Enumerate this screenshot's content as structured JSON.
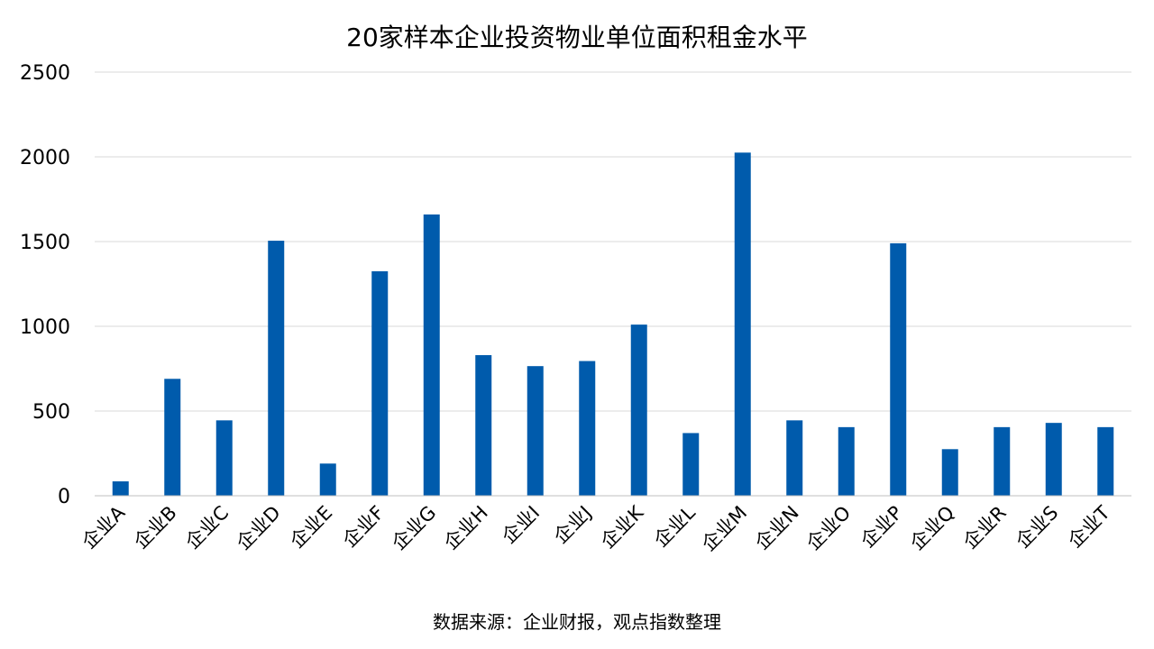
{
  "chart_data": {
    "type": "bar",
    "title": "20家样本企业投资物业单位面积租金水平",
    "xlabel": "",
    "ylabel": "",
    "ylim": [
      0,
      2500
    ],
    "yticks": [
      0,
      500,
      1000,
      1500,
      2000,
      2500
    ],
    "grid": true,
    "legend": "none",
    "color": "#005BAC",
    "categories": [
      "企业A",
      "企业B",
      "企业C",
      "企业D",
      "企业E",
      "企业F",
      "企业G",
      "企业H",
      "企业I",
      "企业J",
      "企业K",
      "企业L",
      "企业M",
      "企业N",
      "企业O",
      "企业P",
      "企业Q",
      "企业R",
      "企业S",
      "企业T"
    ],
    "values": [
      85,
      690,
      445,
      1505,
      190,
      1325,
      1660,
      830,
      765,
      795,
      1010,
      370,
      2025,
      445,
      405,
      1490,
      275,
      405,
      430,
      405
    ]
  },
  "footer": {
    "source": "数据来源：企业财报，观点指数整理"
  }
}
